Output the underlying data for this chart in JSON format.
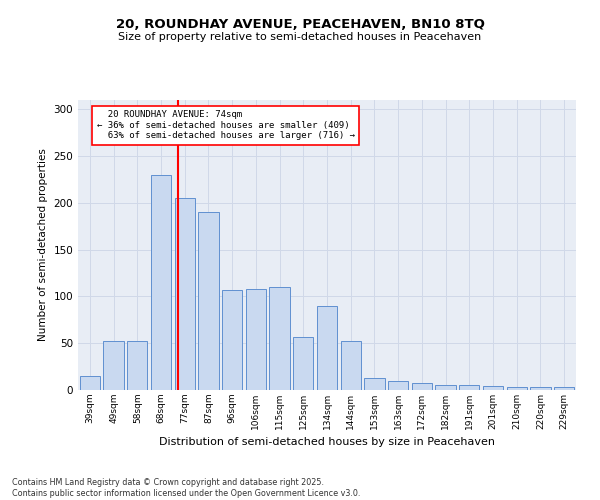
{
  "title1": "20, ROUNDHAY AVENUE, PEACEHAVEN, BN10 8TQ",
  "title2": "Size of property relative to semi-detached houses in Peacehaven",
  "xlabel": "Distribution of semi-detached houses by size in Peacehaven",
  "ylabel": "Number of semi-detached properties",
  "categories": [
    "39sqm",
    "49sqm",
    "58sqm",
    "68sqm",
    "77sqm",
    "87sqm",
    "96sqm",
    "106sqm",
    "115sqm",
    "125sqm",
    "134sqm",
    "144sqm",
    "153sqm",
    "163sqm",
    "172sqm",
    "182sqm",
    "191sqm",
    "201sqm",
    "210sqm",
    "220sqm",
    "229sqm"
  ],
  "values": [
    15,
    52,
    52,
    230,
    205,
    190,
    107,
    108,
    110,
    57,
    90,
    52,
    13,
    10,
    8,
    5,
    5,
    4,
    3,
    3,
    3
  ],
  "bar_color": "#c9d9f0",
  "bar_edge_color": "#6090d0",
  "bar_edge_width": 0.7,
  "vline_x": 3.72,
  "vline_color": "red",
  "property_label": "20 ROUNDHAY AVENUE: 74sqm",
  "pct_smaller": 36,
  "pct_larger": 63,
  "n_smaller": 409,
  "n_larger": 716,
  "ylim": [
    0,
    310
  ],
  "yticks": [
    0,
    50,
    100,
    150,
    200,
    250,
    300
  ],
  "grid_color": "#d0d8e8",
  "bg_color": "#e8edf5",
  "footnote1": "Contains HM Land Registry data © Crown copyright and database right 2025.",
  "footnote2": "Contains public sector information licensed under the Open Government Licence v3.0."
}
